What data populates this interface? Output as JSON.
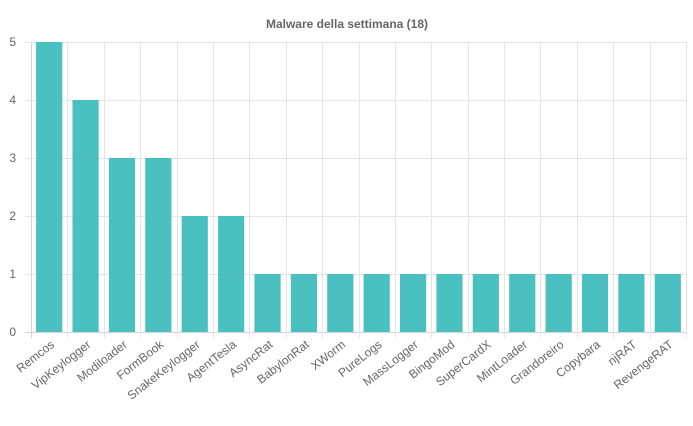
{
  "chart_data": {
    "type": "bar",
    "title": "Malware della settimana (18)",
    "xlabel": "",
    "ylabel": "",
    "ylim": [
      0,
      5
    ],
    "yticks": [
      0,
      1,
      2,
      3,
      4,
      5
    ],
    "grid": true,
    "legend": "none",
    "bar_color": "#4bc0c0",
    "categories": [
      "Remcos",
      "VipKeylogger",
      "Modiloader",
      "FormBook",
      "SnakeKeylogger",
      "AgentTesla",
      "AsyncRat",
      "BabylonRat",
      "XWorm",
      "PureLogs",
      "MassLogger",
      "BingoMod",
      "SuperCardX",
      "MintLoader",
      "Grandoreiro",
      "Copybara",
      "njRAT",
      "RevengeRAT"
    ],
    "values": [
      5,
      4,
      3,
      3,
      2,
      2,
      1,
      1,
      1,
      1,
      1,
      1,
      1,
      1,
      1,
      1,
      1,
      1
    ]
  }
}
